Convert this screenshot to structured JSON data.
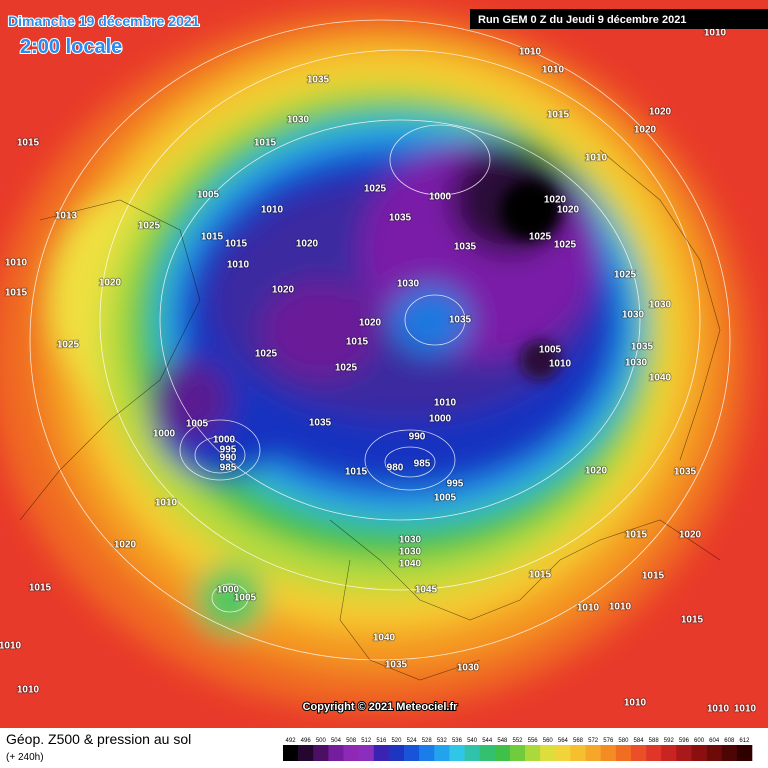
{
  "header": {
    "title": "Dimanche 19 décembre 2021",
    "subtitle": "2:00 locale",
    "run": "Run GEM 0 Z du Jeudi 9 décembre 2021"
  },
  "map": {
    "copyright": "Copyright © 2021 Meteociel.fr",
    "isobar_labels": [
      1015,
      1035,
      1030,
      1015,
      1010,
      1010,
      1010,
      1015,
      1020,
      1020,
      1010,
      1005,
      1010,
      1025,
      1035,
      1000,
      1020,
      1020,
      1025,
      1025,
      1035,
      1013,
      1025,
      1015,
      1015,
      1010,
      1020,
      1020,
      1030,
      1025,
      1030,
      1030,
      1010,
      1015,
      1020,
      1025,
      1025,
      1020,
      1015,
      1025,
      1035,
      1005,
      1010,
      1035,
      1030,
      1040,
      1000,
      1005,
      1000,
      995,
      990,
      985,
      1035,
      1010,
      1000,
      990,
      980,
      985,
      995,
      1015,
      1005,
      1010,
      1020,
      1035,
      1015,
      1020,
      1020,
      1030,
      1030,
      1040,
      1015,
      1045,
      1015,
      1015,
      1010,
      1010,
      1015,
      1005,
      1000,
      1040,
      1035,
      1030,
      1010,
      1010,
      1010,
      1010,
      1010
    ]
  },
  "legend": {
    "title": "Géop. Z500 & pression au sol",
    "lead": "(+ 240h)",
    "scale": [
      492,
      496,
      500,
      504,
      508,
      512,
      516,
      520,
      524,
      528,
      532,
      536,
      540,
      544,
      548,
      552,
      556,
      560,
      564,
      568,
      572,
      576,
      580,
      584,
      588,
      592,
      596,
      600,
      604,
      608,
      612
    ]
  }
}
